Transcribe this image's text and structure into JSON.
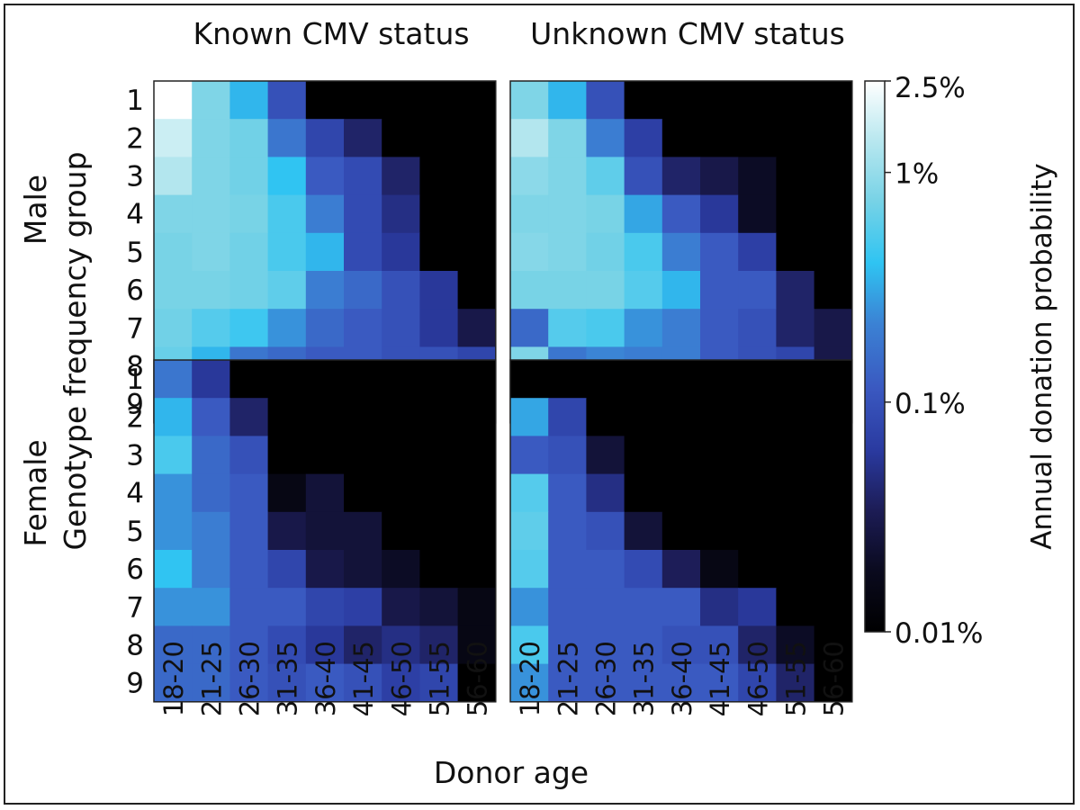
{
  "chart_data": {
    "type": "heatmap",
    "col_titles": [
      "Known CMV status",
      "Unknown CMV status"
    ],
    "row_titles": [
      "Male",
      "Female"
    ],
    "xlabel": "Donor age",
    "ylabel": "Genotype frequency group",
    "colorbar_label": "Annual donation probability",
    "colorbar_ticks": [
      "2.5%",
      "1%",
      "0.1%",
      "0.01%"
    ],
    "colorbar_tick_values": [
      2.5,
      1,
      0.1,
      0.01
    ],
    "scale": "log",
    "vmin": 0.01,
    "vmax": 2.5,
    "x_categories": [
      "18-20",
      "21-25",
      "26-30",
      "31-35",
      "36-40",
      "41-45",
      "46-50",
      "51-55",
      "56-60"
    ],
    "y_categories": [
      "1",
      "2",
      "3",
      "4",
      "5",
      "6",
      "7",
      "8",
      "9"
    ],
    "units": "% per year",
    "colors": [
      "#000000",
      "#0a0a1e",
      "#1c1c55",
      "#2a3aa0",
      "#3a58c0",
      "#3b82d4",
      "#2fc4f2",
      "#76d2e6",
      "#b7e7ef",
      "#ffffff"
    ],
    "panels": [
      {
        "sex": "Male",
        "cmv": "Known CMV status",
        "values": [
          [
            2.5,
            0.8,
            0.35,
            0.1,
            0.01,
            0.01,
            0.01,
            0.01,
            0.01
          ],
          [
            1.6,
            0.8,
            0.7,
            0.18,
            0.08,
            0.04,
            0.01,
            0.01,
            0.01
          ],
          [
            1.3,
            0.8,
            0.7,
            0.4,
            0.12,
            0.09,
            0.04,
            0.01,
            0.01
          ],
          [
            0.8,
            0.8,
            0.75,
            0.5,
            0.2,
            0.09,
            0.05,
            0.01,
            0.01
          ],
          [
            0.75,
            0.8,
            0.7,
            0.5,
            0.35,
            0.09,
            0.06,
            0.01,
            0.01
          ],
          [
            0.75,
            0.75,
            0.7,
            0.6,
            0.2,
            0.15,
            0.1,
            0.06,
            0.01
          ],
          [
            0.7,
            0.55,
            0.45,
            0.25,
            0.15,
            0.12,
            0.1,
            0.06,
            0.03
          ],
          [
            0.65,
            0.35,
            0.18,
            0.15,
            0.12,
            0.12,
            0.1,
            0.1,
            0.08
          ],
          [
            0.45,
            0.45,
            0.25,
            0.15,
            0.12,
            0.12,
            0.1,
            0.1,
            0.06
          ]
        ]
      },
      {
        "sex": "Male",
        "cmv": "Unknown CMV status",
        "values": [
          [
            0.8,
            0.35,
            0.1,
            0.01,
            0.01,
            0.01,
            0.01,
            0.01,
            0.01
          ],
          [
            1.3,
            0.8,
            0.2,
            0.07,
            0.01,
            0.01,
            0.01,
            0.01,
            0.01
          ],
          [
            0.9,
            0.8,
            0.6,
            0.1,
            0.04,
            0.03,
            0.02,
            0.01,
            0.01
          ],
          [
            0.8,
            0.8,
            0.75,
            0.3,
            0.12,
            0.06,
            0.02,
            0.01,
            0.01
          ],
          [
            0.85,
            0.8,
            0.7,
            0.5,
            0.2,
            0.12,
            0.07,
            0.01,
            0.01
          ],
          [
            0.75,
            0.75,
            0.75,
            0.55,
            0.35,
            0.12,
            0.12,
            0.04,
            0.01
          ],
          [
            0.15,
            0.55,
            0.5,
            0.25,
            0.2,
            0.12,
            0.1,
            0.04,
            0.03
          ],
          [
            0.8,
            0.18,
            0.22,
            0.2,
            0.2,
            0.12,
            0.1,
            0.08,
            0.03
          ],
          [
            0.75,
            0.3,
            0.15,
            0.15,
            0.12,
            0.1,
            0.12,
            0.1,
            0.02
          ]
        ]
      },
      {
        "sex": "Female",
        "cmv": "Known CMV status",
        "values": [
          [
            0.18,
            0.06,
            0.01,
            0.01,
            0.01,
            0.01,
            0.01,
            0.01,
            0.01
          ],
          [
            0.35,
            0.12,
            0.04,
            0.01,
            0.01,
            0.01,
            0.01,
            0.01,
            0.01
          ],
          [
            0.5,
            0.15,
            0.1,
            0.01,
            0.01,
            0.01,
            0.01,
            0.01,
            0.01
          ],
          [
            0.25,
            0.15,
            0.12,
            0.015,
            0.025,
            0.01,
            0.01,
            0.01,
            0.01
          ],
          [
            0.25,
            0.2,
            0.12,
            0.03,
            0.025,
            0.025,
            0.01,
            0.01,
            0.01
          ],
          [
            0.4,
            0.2,
            0.12,
            0.08,
            0.03,
            0.025,
            0.02,
            0.01,
            0.01
          ],
          [
            0.25,
            0.25,
            0.12,
            0.12,
            0.08,
            0.07,
            0.03,
            0.025,
            0.015
          ],
          [
            0.15,
            0.15,
            0.12,
            0.09,
            0.06,
            0.04,
            0.05,
            0.04,
            0.015
          ],
          [
            0.15,
            0.15,
            0.12,
            0.1,
            0.12,
            0.1,
            0.07,
            0.08,
            0.01
          ]
        ]
      },
      {
        "sex": "Female",
        "cmv": "Unknown CMV status",
        "values": [
          [
            0.01,
            0.01,
            0.01,
            0.01,
            0.01,
            0.01,
            0.01,
            0.01,
            0.01
          ],
          [
            0.3,
            0.08,
            0.01,
            0.01,
            0.01,
            0.01,
            0.01,
            0.01,
            0.01
          ],
          [
            0.12,
            0.1,
            0.025,
            0.01,
            0.01,
            0.01,
            0.01,
            0.01,
            0.01
          ],
          [
            0.55,
            0.12,
            0.05,
            0.01,
            0.01,
            0.01,
            0.01,
            0.01,
            0.01
          ],
          [
            0.6,
            0.12,
            0.1,
            0.025,
            0.01,
            0.01,
            0.01,
            0.01,
            0.01
          ],
          [
            0.55,
            0.12,
            0.12,
            0.09,
            0.035,
            0.015,
            0.01,
            0.01,
            0.01
          ],
          [
            0.25,
            0.12,
            0.12,
            0.12,
            0.12,
            0.05,
            0.06,
            0.01,
            0.01
          ],
          [
            0.5,
            0.12,
            0.12,
            0.12,
            0.1,
            0.1,
            0.04,
            0.02,
            0.01
          ],
          [
            0.25,
            0.12,
            0.12,
            0.12,
            0.12,
            0.12,
            0.08,
            0.04,
            0.01
          ]
        ]
      }
    ]
  }
}
